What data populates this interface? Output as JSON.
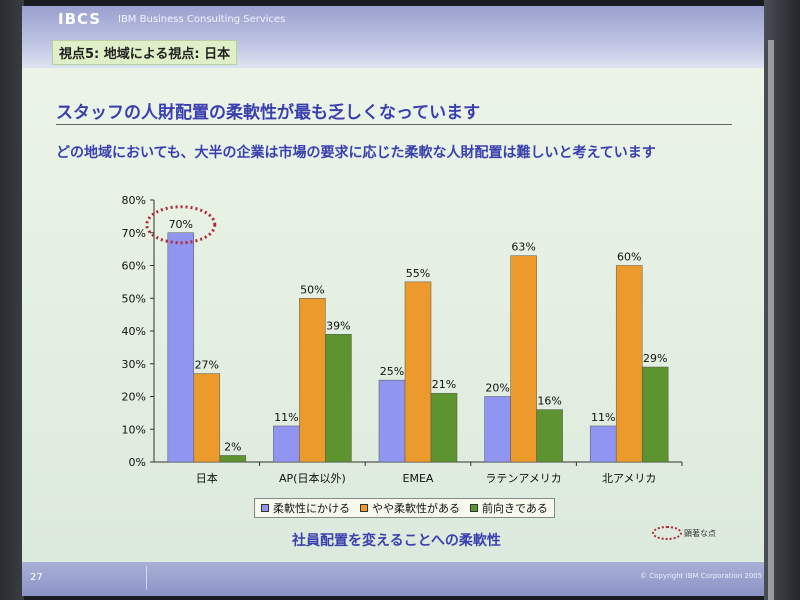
{
  "slide": {
    "brand": "IBCS",
    "brand_sub": "IBM Business Consulting Services",
    "breadcrumb": "視点5: 地域による視点: 日本",
    "headline": "スタッフの人財配置の柔軟性が最も乏しくなっています",
    "subtitle": "どの地域においても、大半の企業は市場の要求に応じた柔軟な人財配置は難しいと考えています",
    "caption": "社員配置を変えることへの柔軟性",
    "notable_label": "顕著な点",
    "page_number": "27",
    "copyright": "© Copyright IBM Corporation 2005"
  },
  "colors": {
    "series1": "#8f95f0",
    "series2": "#ec9a2c",
    "series3": "#5e9430",
    "title_text": "#3a3fb0",
    "highlight": "#b0283a"
  },
  "chart_data": {
    "type": "bar",
    "categories": [
      "日本",
      "AP(日本以外)",
      "EMEA",
      "ラテンアメリカ",
      "北アメリカ"
    ],
    "series": [
      {
        "name": "柔軟性にかける",
        "values": [
          70,
          11,
          25,
          20,
          11
        ]
      },
      {
        "name": "やや柔軟性がある",
        "values": [
          27,
          50,
          55,
          63,
          60
        ]
      },
      {
        "name": "前向きである",
        "values": [
          2,
          39,
          21,
          16,
          29
        ]
      }
    ],
    "value_labels": [
      [
        "70%",
        "11%",
        "25%",
        "20%",
        "11%"
      ],
      [
        "27%",
        "50%",
        "55%",
        "63%",
        "60%"
      ],
      [
        "2%",
        "39%",
        "21%",
        "16%",
        "29%"
      ]
    ],
    "ylim": [
      0,
      80
    ],
    "yticks": [
      "0%",
      "10%",
      "20%",
      "30%",
      "40%",
      "50%",
      "60%",
      "70%",
      "80%"
    ],
    "highlight_category": "日本",
    "legend_position": "bottom",
    "grid": false
  }
}
